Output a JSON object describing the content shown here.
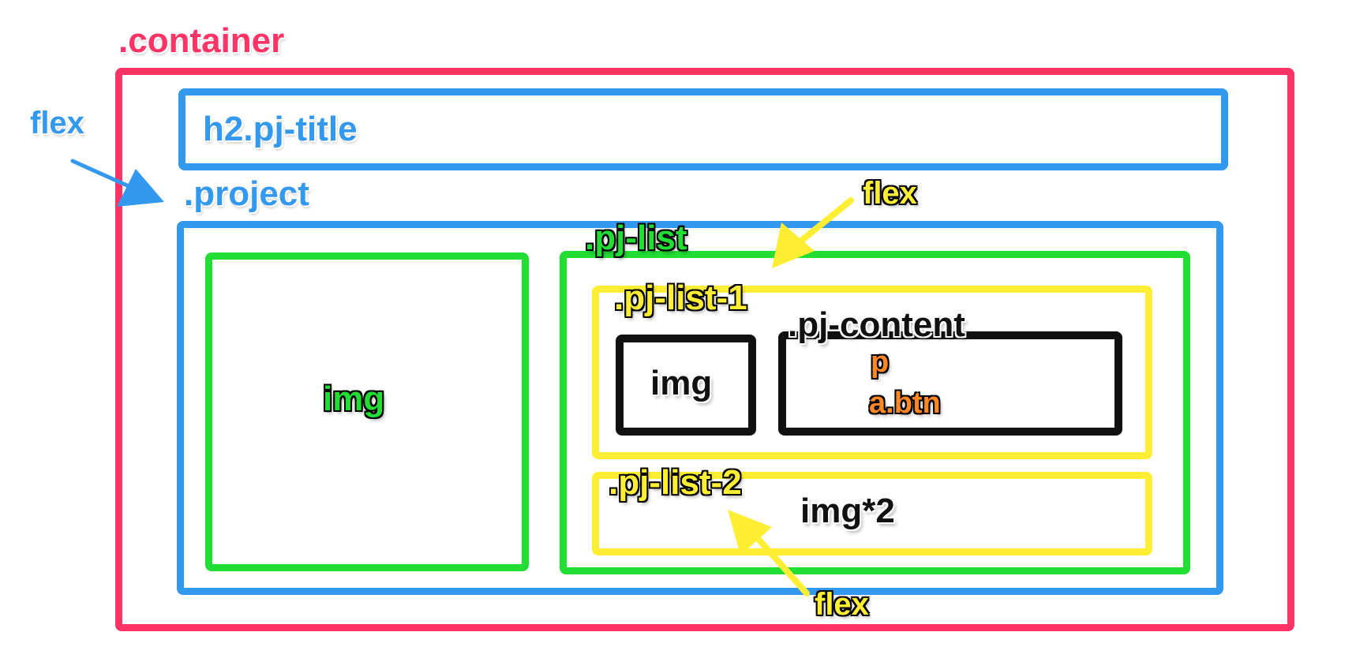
{
  "colors": {
    "container": "#ff3366",
    "project": "#3399ee",
    "pj_list": "#22dd33",
    "pj_list_items": "#ffee33",
    "inner": "#111111",
    "content_children": "#ff8822"
  },
  "labels": {
    "container": ".container",
    "pj_title": "h2.pj-title",
    "project": ".project",
    "flex_project": "flex",
    "flex_pj_list": "flex",
    "flex_pj_list_2": "flex",
    "big_img": "img",
    "pj_list": ".pj-list",
    "pj_list_1": ".pj-list-1",
    "small_img": "img",
    "pj_content": ".pj-content",
    "p": "p",
    "a_btn": "a.btn",
    "pj_list_2": ".pj-list-2",
    "img_x2": "img*2"
  }
}
